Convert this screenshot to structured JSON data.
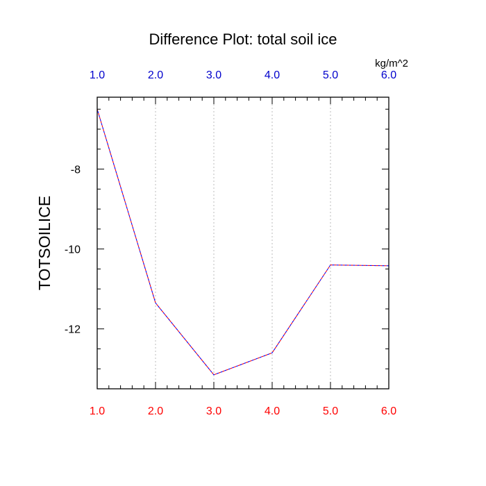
{
  "chart_data": {
    "type": "line",
    "title": "Difference Plot: total soil ice",
    "units_label": "kg/m^2",
    "ylabel": "TOTSOILICE",
    "xlim": [
      1.0,
      6.0
    ],
    "ylim": [
      -13.5,
      -6.2
    ],
    "x_ticks": [
      "1.0",
      "2.0",
      "3.0",
      "4.0",
      "5.0",
      "6.0"
    ],
    "y_ticks": [
      {
        "value": -8,
        "label": "-8"
      },
      {
        "value": -10,
        "label": "-10"
      },
      {
        "value": -12,
        "label": "-12"
      }
    ],
    "grid_x": true,
    "series": [
      {
        "color": "#ff0000",
        "x": [
          1,
          2,
          3,
          4,
          5,
          6
        ],
        "y": [
          -6.5,
          -11.35,
          -13.15,
          -12.6,
          -10.4,
          -10.42
        ]
      },
      {
        "color": "#0000ff",
        "x": [
          1,
          2,
          3,
          4,
          5,
          6
        ],
        "y": [
          -6.5,
          -11.35,
          -13.15,
          -12.6,
          -10.4,
          -10.42
        ]
      }
    ],
    "colors": {
      "bottom_axis": "#ff0000",
      "top_axis": "#0000cc",
      "grid": "#bbbbbb",
      "frame": "#000000"
    }
  }
}
